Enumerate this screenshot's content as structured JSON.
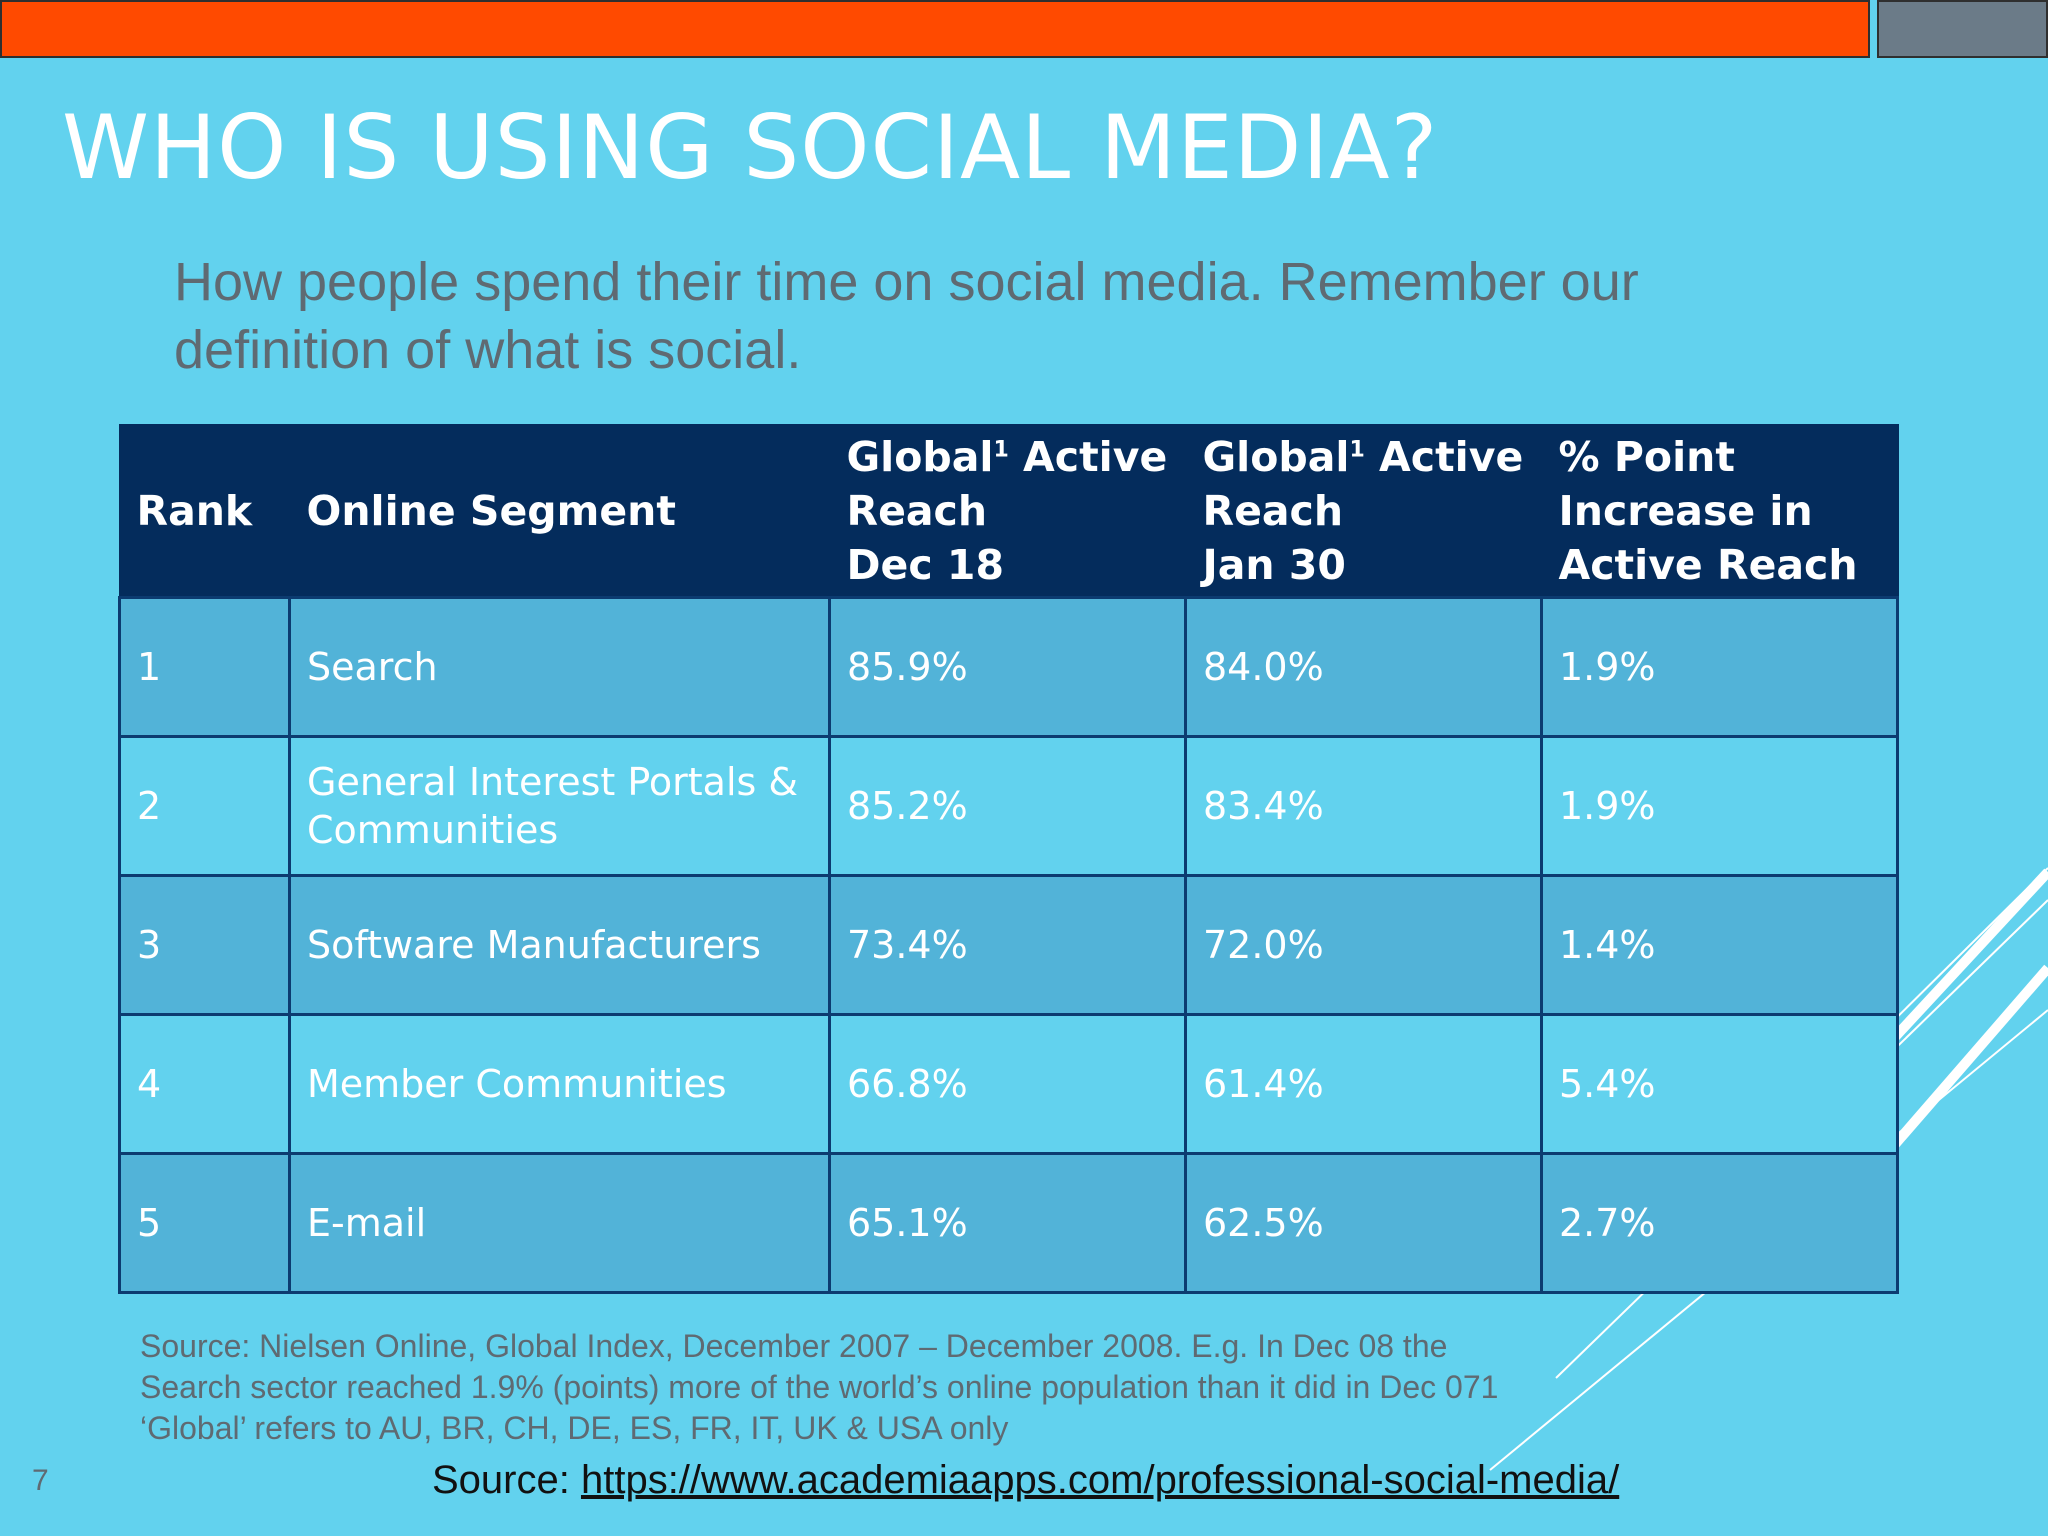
{
  "title": "WHO IS USING SOCIAL MEDIA?",
  "subtitle": "How people spend their time on social media. Remember our definition of what is social.",
  "table": {
    "headers": {
      "rank": "Rank",
      "segment": "Online Segment",
      "dec_line1": "Global",
      "dec_sup": "1",
      "dec_line1_rest": " Active",
      "dec_line2": "Reach",
      "dec_line3": "Dec 18",
      "jan_line1": "Global",
      "jan_sup": "1",
      "jan_line1_rest": " Active",
      "jan_line2": "Reach",
      "jan_line3": "Jan 30",
      "inc_line1": "% Point",
      "inc_line2": "Increase in",
      "inc_line3": "Active Reach"
    },
    "rows": [
      {
        "rank": "1",
        "segment": "Search",
        "dec": "85.9%",
        "jan": "84.0%",
        "increase": "1.9%"
      },
      {
        "rank": "2",
        "segment": "General Interest Portals & Communities",
        "dec": "85.2%",
        "jan": "83.4%",
        "increase": "1.9%"
      },
      {
        "rank": "3",
        "segment": "Software Manufacturers",
        "dec": "73.4%",
        "jan": "72.0%",
        "increase": "1.4%"
      },
      {
        "rank": "4",
        "segment": "Member Communities",
        "dec": "66.8%",
        "jan": "61.4%",
        "increase": "5.4%"
      },
      {
        "rank": "5",
        "segment": "E-mail",
        "dec": "65.1%",
        "jan": "62.5%",
        "increase": "2.7%"
      }
    ]
  },
  "source_note": {
    "line1": "Source: Nielsen Online, Global Index, December 2007 – December 2008. E.g. In Dec 08 the",
    "line2": "Search sector reached 1.9% (points) more of the world’s online population than it did in Dec 071",
    "line3": "‘Global’ refers to AU, BR, CH, DE, ES, FR, IT, UK & USA only"
  },
  "page_number": "7",
  "footer": {
    "label": "Source: ",
    "link_text": "https://www.academiaapps.com/professional-social-media/"
  },
  "colors": {
    "background": "#62D2EE",
    "top_bar": "#FF4A00",
    "top_bar_right": "#6B7B88",
    "table_header": "#042C5C",
    "row_odd": "#52B3D8",
    "row_even": "#62D2EE"
  }
}
